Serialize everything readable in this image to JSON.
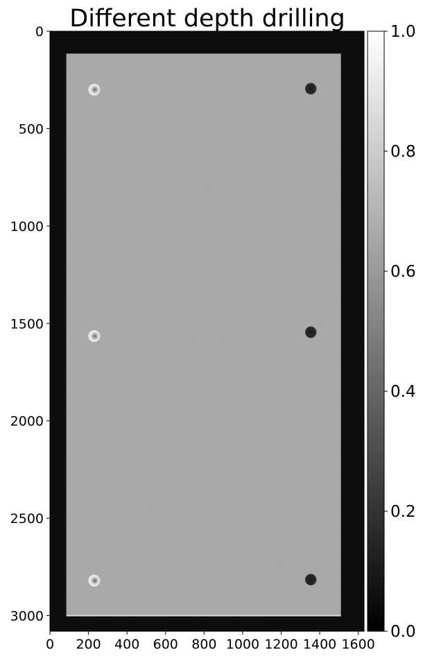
{
  "chart_data": {
    "type": "heatmap",
    "title": "Different depth drilling",
    "xlabel": "",
    "ylabel": "",
    "xlim": [
      0,
      1630
    ],
    "ylim": [
      3080,
      0
    ],
    "x_ticks": [
      0,
      200,
      400,
      600,
      800,
      1000,
      1200,
      1400,
      1600
    ],
    "y_ticks": [
      0,
      500,
      1000,
      1500,
      2000,
      2500,
      3000
    ],
    "grid": false,
    "colormap": "gray",
    "colorbar": {
      "range": [
        0,
        1
      ],
      "ticks": [
        "0.0",
        "0.2",
        "0.4",
        "0.6",
        "0.8",
        "1.0"
      ]
    },
    "plate": {
      "x_range": [
        85,
        1510
      ],
      "y_range": [
        115,
        3000
      ],
      "intensity": 0.66,
      "background_intensity": 0.05
    },
    "holes": [
      {
        "x": 230,
        "y": 300,
        "shade": "bright-rim"
      },
      {
        "x": 1355,
        "y": 295,
        "shade": "dark"
      },
      {
        "x": 230,
        "y": 1565,
        "shade": "bright-rim"
      },
      {
        "x": 1355,
        "y": 1545,
        "shade": "dark"
      },
      {
        "x": 230,
        "y": 2820,
        "shade": "bright-rim"
      },
      {
        "x": 1355,
        "y": 2815,
        "shade": "dark"
      }
    ]
  }
}
